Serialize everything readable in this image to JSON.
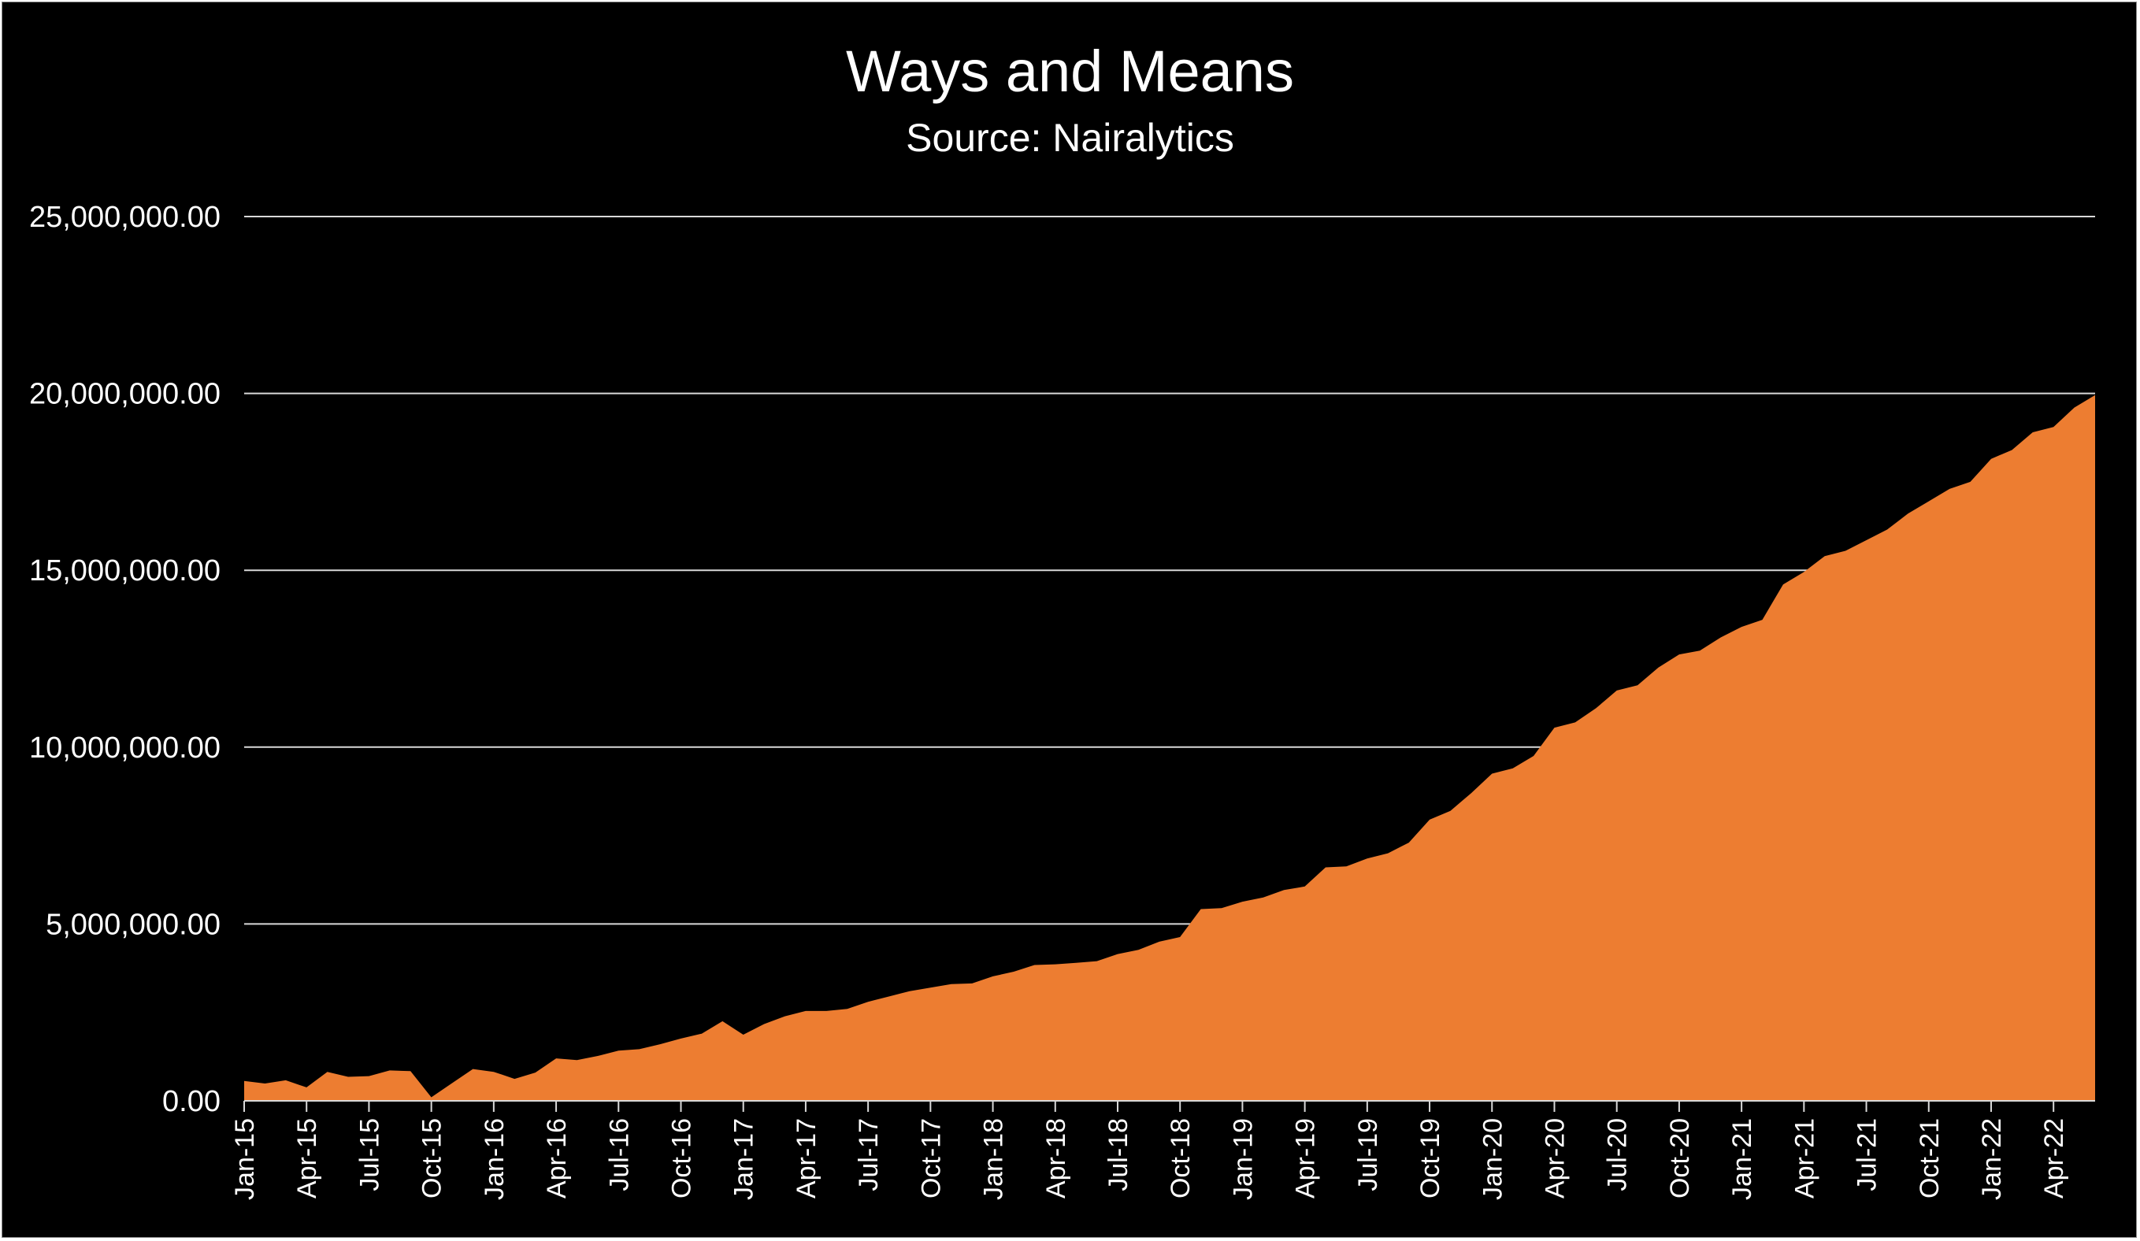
{
  "chart_data": {
    "type": "area",
    "title": "Ways and Means",
    "subtitle": "Source: Nairalytics",
    "xlabel": "",
    "ylabel": "",
    "ylim": [
      0,
      25000000
    ],
    "yticks": [
      0,
      5000000,
      10000000,
      15000000,
      20000000,
      25000000
    ],
    "ytick_labels": [
      "0.00",
      "5,000,000.00",
      "10,000,000.00",
      "15,000,000.00",
      "20,000,000.00",
      "25,000,000.00"
    ],
    "xtick_labels": [
      "Jan-15",
      "Apr-15",
      "Jul-15",
      "Oct-15",
      "Jan-16",
      "Apr-16",
      "Jul-16",
      "Oct-16",
      "Jan-17",
      "Apr-17",
      "Jul-17",
      "Oct-17",
      "Jan-18",
      "Apr-18",
      "Jul-18",
      "Oct-18",
      "Jan-19",
      "Apr-19",
      "Jul-19",
      "Oct-19",
      "Jan-20",
      "Apr-20",
      "Jul-20",
      "Oct-20",
      "Jan-21",
      "Apr-21",
      "Jul-21",
      "Oct-21",
      "Jan-22",
      "Apr-22"
    ],
    "grid": true,
    "fill_color": "#ed7d31",
    "x": [
      "Jan-15",
      "Feb-15",
      "Mar-15",
      "Apr-15",
      "May-15",
      "Jun-15",
      "Jul-15",
      "Aug-15",
      "Sep-15",
      "Oct-15",
      "Nov-15",
      "Dec-15",
      "Jan-16",
      "Feb-16",
      "Mar-16",
      "Apr-16",
      "May-16",
      "Jun-16",
      "Jul-16",
      "Aug-16",
      "Sep-16",
      "Oct-16",
      "Nov-16",
      "Dec-16",
      "Jan-17",
      "Feb-17",
      "Mar-17",
      "Apr-17",
      "May-17",
      "Jun-17",
      "Jul-17",
      "Aug-17",
      "Sep-17",
      "Oct-17",
      "Nov-17",
      "Dec-17",
      "Jan-18",
      "Feb-18",
      "Mar-18",
      "Apr-18",
      "May-18",
      "Jun-18",
      "Jul-18",
      "Aug-18",
      "Sep-18",
      "Oct-18",
      "Nov-18",
      "Dec-18",
      "Jan-19",
      "Feb-19",
      "Mar-19",
      "Apr-19",
      "May-19",
      "Jun-19",
      "Jul-19",
      "Aug-19",
      "Sep-19",
      "Oct-19",
      "Nov-19",
      "Dec-19",
      "Jan-20",
      "Feb-20",
      "Mar-20",
      "Apr-20",
      "May-20",
      "Jun-20",
      "Jul-20",
      "Aug-20",
      "Sep-20",
      "Oct-20",
      "Nov-20",
      "Dec-20",
      "Jan-21",
      "Feb-21",
      "Mar-21",
      "Apr-21",
      "May-21",
      "Jun-21",
      "Jul-21",
      "Aug-21",
      "Sep-21",
      "Oct-21",
      "Nov-21",
      "Dec-21",
      "Jan-22",
      "Feb-22",
      "Mar-22",
      "Apr-22",
      "May-22",
      "Jun-22"
    ],
    "values": [
      560000,
      490000,
      580000,
      380000,
      820000,
      680000,
      700000,
      860000,
      840000,
      100000,
      500000,
      900000,
      820000,
      620000,
      800000,
      1200000,
      1150000,
      1270000,
      1420000,
      1460000,
      1600000,
      1760000,
      1900000,
      2250000,
      1870000,
      2170000,
      2390000,
      2540000,
      2540000,
      2600000,
      2800000,
      2950000,
      3100000,
      3200000,
      3300000,
      3320000,
      3520000,
      3650000,
      3840000,
      3860000,
      3900000,
      3950000,
      4150000,
      4270000,
      4500000,
      4630000,
      5420000,
      5450000,
      5630000,
      5750000,
      5960000,
      6060000,
      6600000,
      6630000,
      6850000,
      7000000,
      7300000,
      7950000,
      8200000,
      8700000,
      9250000,
      9400000,
      9750000,
      10550000,
      10700000,
      11100000,
      11600000,
      11750000,
      12250000,
      12620000,
      12730000,
      13100000,
      13400000,
      13600000,
      14600000,
      14950000,
      15400000,
      15550000,
      15850000,
      16150000,
      16600000,
      16950000,
      17300000,
      17500000,
      18150000,
      18400000,
      18900000,
      19050000,
      19600000,
      19950000
    ]
  }
}
